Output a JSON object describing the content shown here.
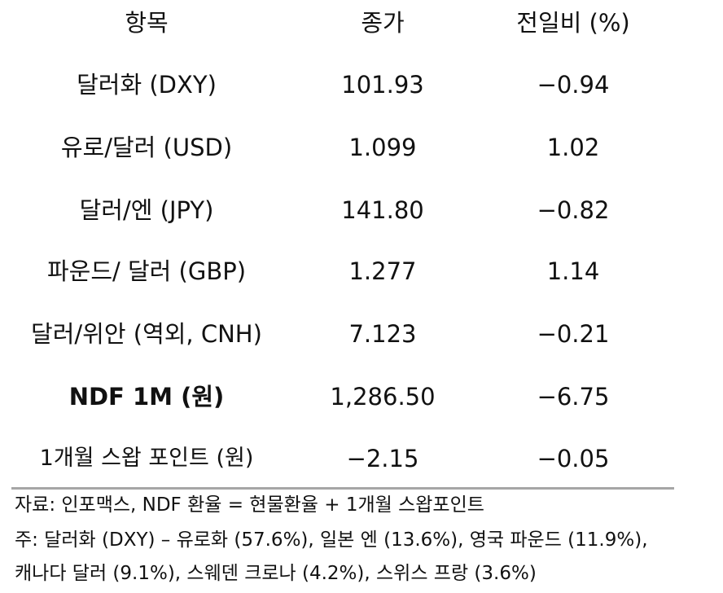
{
  "table": {
    "headers": [
      "항목",
      "종가",
      "전일비 (%)"
    ],
    "rows": [
      {
        "item": "달러화 (DXY)",
        "close": "101.93",
        "change": "−0.94",
        "bold": false
      },
      {
        "item": "유로/달러 (USD)",
        "close": "1.099",
        "change": "1.02",
        "bold": false
      },
      {
        "item": "달러/엔 (JPY)",
        "close": "141.80",
        "change": "−0.82",
        "bold": false
      },
      {
        "item": "파운드/ 달러 (GBP)",
        "close": "1.277",
        "change": "1.14",
        "bold": false
      },
      {
        "item": "달러/위안 (역외, CNH)",
        "close": "7.123",
        "change": "−0.21",
        "bold": false
      },
      {
        "item": "NDF 1M (원)",
        "close": "1,286.50",
        "change": "−6.75",
        "bold": true
      },
      {
        "item": "1개월 스왑 포인트 (원)",
        "close": "−2.15",
        "change": "−0.05",
        "bold": false
      }
    ]
  },
  "notes": {
    "source": "자료: 인포맥스, NDF 환율 = 현물환율 + 1개월 스왑포인트",
    "note_line1": "주: 달러화 (DXY) – 유로화 (57.6%), 일본 엔 (13.6%), 영국 파운드 (11.9%),",
    "note_line2": "캐나다 달러 (9.1%), 스웨덴 크로나 (4.2%), 스위스 프랑 (3.6%)"
  }
}
